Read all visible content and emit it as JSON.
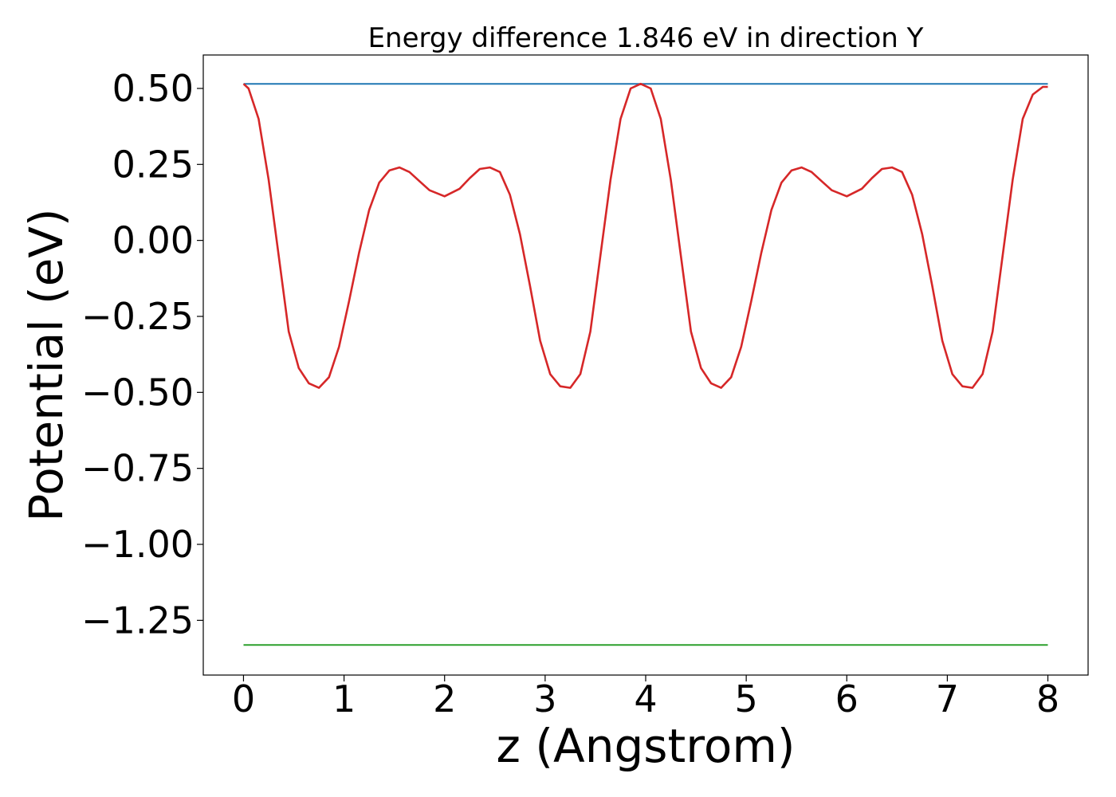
{
  "chart_data": {
    "type": "line",
    "title": "Energy difference 1.846 eV in direction Y",
    "xlabel": "z (Angstrom)",
    "ylabel": "Potential (eV)",
    "xlim": [
      -0.4,
      8.4
    ],
    "ylim": [
      -1.43,
      0.61
    ],
    "x_ticks": [
      0,
      1,
      2,
      3,
      4,
      5,
      6,
      7,
      8
    ],
    "x_tick_labels": [
      "0",
      "1",
      "2",
      "3",
      "4",
      "5",
      "6",
      "7",
      "8"
    ],
    "y_ticks": [
      0.5,
      0.25,
      0.0,
      -0.25,
      -0.5,
      -0.75,
      -1.0,
      -1.25
    ],
    "y_tick_labels": [
      "0.50",
      "0.25",
      "0.00",
      "−0.25",
      "−0.50",
      "−0.75",
      "−1.00",
      "−1.25"
    ],
    "grid": false,
    "legend": "none",
    "series": [
      {
        "color": "#1f77b4",
        "x": [
          0,
          8
        ],
        "y": [
          0.515,
          0.515
        ]
      },
      {
        "color": "#d62728",
        "x": [
          0,
          0.05,
          0.15,
          0.25,
          0.35,
          0.45,
          0.55,
          0.65,
          0.75,
          0.85,
          0.95,
          1.05,
          1.15,
          1.25,
          1.35,
          1.45,
          1.55,
          1.65,
          1.75,
          1.85,
          2.0,
          2.15,
          2.25,
          2.35,
          2.45,
          2.55,
          2.65,
          2.75,
          2.85,
          2.95,
          3.05,
          3.15,
          3.25,
          3.35,
          3.45,
          3.55,
          3.65,
          3.75,
          3.85,
          3.95,
          4.05,
          4.15,
          4.25,
          4.35,
          4.45,
          4.55,
          4.65,
          4.75,
          4.85,
          4.95,
          5.05,
          5.15,
          5.25,
          5.35,
          5.45,
          5.55,
          5.65,
          5.75,
          5.85,
          6.0,
          6.15,
          6.25,
          6.35,
          6.45,
          6.55,
          6.65,
          6.75,
          6.85,
          6.95,
          7.05,
          7.15,
          7.25,
          7.35,
          7.45,
          7.55,
          7.65,
          7.75,
          7.85,
          7.95,
          8.0
        ],
        "y": [
          0.515,
          0.5,
          0.4,
          0.2,
          -0.05,
          -0.3,
          -0.42,
          -0.47,
          -0.485,
          -0.45,
          -0.35,
          -0.2,
          -0.04,
          0.1,
          0.19,
          0.23,
          0.24,
          0.225,
          0.195,
          0.165,
          0.145,
          0.17,
          0.205,
          0.235,
          0.24,
          0.225,
          0.15,
          0.02,
          -0.15,
          -0.33,
          -0.44,
          -0.48,
          -0.485,
          -0.44,
          -0.3,
          -0.05,
          0.2,
          0.4,
          0.5,
          0.515,
          0.5,
          0.4,
          0.2,
          -0.05,
          -0.3,
          -0.42,
          -0.47,
          -0.485,
          -0.45,
          -0.35,
          -0.2,
          -0.04,
          0.1,
          0.19,
          0.23,
          0.24,
          0.225,
          0.195,
          0.165,
          0.145,
          0.17,
          0.205,
          0.235,
          0.24,
          0.225,
          0.15,
          0.02,
          -0.15,
          -0.33,
          -0.44,
          -0.48,
          -0.485,
          -0.44,
          -0.3,
          -0.05,
          0.2,
          0.4,
          0.48,
          0.505,
          0.505
        ]
      },
      {
        "color": "#2ca02c",
        "x": [
          0,
          8
        ],
        "y": [
          -1.331,
          -1.331
        ]
      }
    ]
  }
}
